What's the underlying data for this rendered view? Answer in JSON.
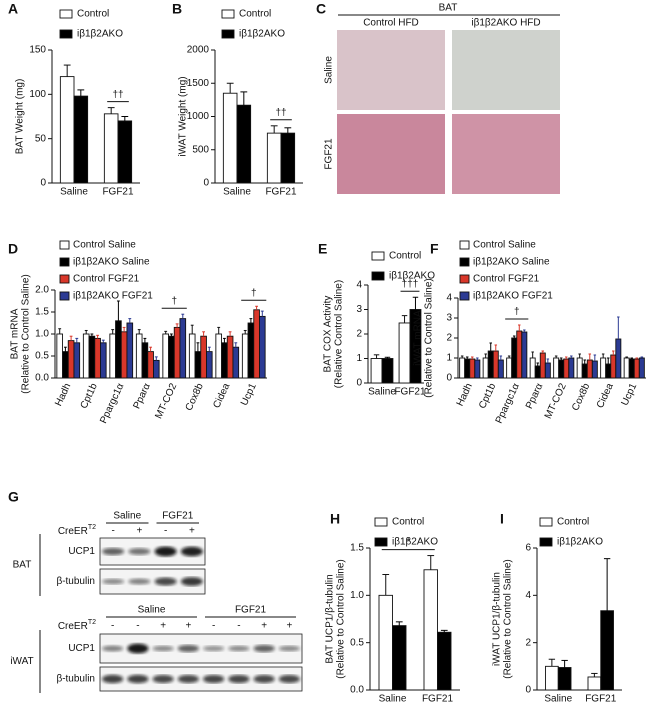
{
  "chart_data": [
    {
      "panel": "A",
      "type": "bar",
      "ylabel": [
        "BAT Weight (mg)"
      ],
      "categories": [
        "Saline",
        "FGF21"
      ],
      "series": [
        {
          "name": "Control",
          "color": "#ffffff",
          "values": [
            120,
            78
          ],
          "errors": [
            13,
            7
          ]
        },
        {
          "name": "iβ1β2AKO",
          "color": "#000000",
          "values": [
            98,
            70
          ],
          "errors": [
            7,
            5
          ]
        }
      ],
      "ylim": [
        0,
        150
      ],
      "yticks": [
        0,
        50,
        100,
        150
      ],
      "annotations": [
        "††"
      ]
    },
    {
      "panel": "B",
      "type": "bar",
      "ylabel": [
        "iWAT Weight (mg)"
      ],
      "categories": [
        "Saline",
        "FGF21"
      ],
      "series": [
        {
          "name": "Control",
          "color": "#ffffff",
          "values": [
            1350,
            750
          ],
          "errors": [
            150,
            110
          ]
        },
        {
          "name": "iβ1β2AKO",
          "color": "#000000",
          "values": [
            1170,
            750
          ],
          "errors": [
            200,
            80
          ]
        }
      ],
      "ylim": [
        0,
        2000
      ],
      "yticks": [
        0,
        500,
        1000,
        1500,
        2000
      ],
      "annotations": [
        "††"
      ]
    },
    {
      "panel": "D",
      "type": "bar",
      "ylabel": [
        "BAT mRNA",
        "(Relative to Control Saline)"
      ],
      "categories": [
        "Hadh",
        "Cpt1b",
        "Ppargc1α",
        "Pparα",
        "MT-CO2",
        "Cox8b",
        "Cidea",
        "Ucp1"
      ],
      "series": [
        {
          "name": "Control Saline",
          "color": "#ffffff",
          "values": [
            1.0,
            1.0,
            1.0,
            1.0,
            1.0,
            1.0,
            1.0,
            1.0
          ],
          "errors": [
            0.12,
            0.08,
            0.1,
            0.1,
            0.06,
            0.2,
            0.15,
            0.08
          ]
        },
        {
          "name": "iβ1β2AKO Saline",
          "color": "#000000",
          "values": [
            0.6,
            0.95,
            1.3,
            0.8,
            0.95,
            0.6,
            0.8,
            1.25
          ],
          "errors": [
            0.1,
            0.05,
            0.45,
            0.1,
            0.05,
            0.2,
            0.1,
            0.1
          ]
        },
        {
          "name": "Control FGF21",
          "color": "#d9372a",
          "values": [
            0.85,
            0.9,
            1.05,
            0.6,
            1.15,
            0.95,
            0.95,
            1.55
          ],
          "errors": [
            0.1,
            0.07,
            0.1,
            0.1,
            0.08,
            0.1,
            0.1,
            0.08
          ]
        },
        {
          "name": "iβ1β2AKO FGF21",
          "color": "#2b3a93",
          "values": [
            0.8,
            0.8,
            1.25,
            0.4,
            1.35,
            0.6,
            0.7,
            1.4
          ],
          "errors": [
            0.1,
            0.06,
            0.1,
            0.08,
            0.1,
            0.1,
            0.1,
            0.12
          ]
        }
      ],
      "ylim": [
        0,
        2
      ],
      "yticks": [
        {
          "value": 0,
          "label": "0.0"
        },
        0.5,
        {
          "value": 1,
          "label": "1.0"
        },
        1.5,
        {
          "value": 2,
          "label": "2.0"
        }
      ],
      "annotations": [
        "†",
        "†"
      ]
    },
    {
      "panel": "E",
      "type": "bar",
      "ylabel": [
        "BAT COX Activity",
        "(Relative Control Saline)"
      ],
      "categories": [
        "Saline",
        "FGF21"
      ],
      "series": [
        {
          "name": "Control",
          "color": "#ffffff",
          "values": [
            1.0,
            2.45
          ],
          "errors": [
            0.15,
            0.3
          ]
        },
        {
          "name": "iβ1β2AKO",
          "color": "#000000",
          "values": [
            1.0,
            3.0
          ],
          "errors": [
            0.05,
            0.5
          ]
        }
      ],
      "ylim": [
        0,
        4
      ],
      "yticks": [
        0,
        1,
        2,
        3,
        4
      ],
      "annotations": [
        "†††"
      ]
    },
    {
      "panel": "F",
      "type": "bar",
      "ylabel": [
        "iWAT mRNA",
        "(Relative to Control Saline)"
      ],
      "categories": [
        "Hadh",
        "Cpt1b",
        "Ppargc1α",
        "Pparα",
        "MT-CO2",
        "Cox8b",
        "Cidea",
        "Ucp1"
      ],
      "series": [
        {
          "name": "Control Saline",
          "color": "#ffffff",
          "values": [
            1.0,
            1.0,
            1.0,
            1.0,
            1.0,
            1.0,
            1.0,
            1.0
          ],
          "errors": [
            0.1,
            0.2,
            0.1,
            0.3,
            0.1,
            0.2,
            0.2,
            0.05
          ]
        },
        {
          "name": "iβ1β2AKO Saline",
          "color": "#000000",
          "values": [
            0.95,
            1.35,
            2.0,
            0.6,
            0.9,
            0.7,
            0.7,
            0.95
          ],
          "errors": [
            0.1,
            0.4,
            0.1,
            0.15,
            0.1,
            0.2,
            0.3,
            0.05
          ]
        },
        {
          "name": "Control FGF21",
          "color": "#d9372a",
          "values": [
            0.95,
            1.35,
            2.35,
            1.25,
            0.95,
            0.9,
            1.15,
            0.95
          ],
          "errors": [
            0.1,
            0.3,
            0.3,
            0.1,
            0.1,
            0.3,
            0.2,
            0.05
          ]
        },
        {
          "name": "iβ1β2AKO FGF21",
          "color": "#2b3a93",
          "values": [
            0.9,
            0.9,
            2.3,
            0.75,
            1.0,
            0.85,
            1.95,
            1.0
          ],
          "errors": [
            0.1,
            0.2,
            0.1,
            0.2,
            0.1,
            0.3,
            1.1,
            0.05
          ]
        }
      ],
      "ylim": [
        0,
        4
      ],
      "yticks": [
        0,
        1,
        2,
        3,
        4
      ],
      "annotations": [
        "†"
      ]
    },
    {
      "panel": "H",
      "type": "bar",
      "ylabel": [
        "BAT UCP1/β-tubulin",
        "(Relative to Control Saline)"
      ],
      "categories": [
        "Saline",
        "FGF21"
      ],
      "series": [
        {
          "name": "Control",
          "color": "#ffffff",
          "values": [
            1.0,
            1.27
          ],
          "errors": [
            0.22,
            0.15
          ]
        },
        {
          "name": "iβ1β2AKO",
          "color": "#000000",
          "values": [
            0.68,
            0.61
          ],
          "errors": [
            0.04,
            0.02
          ]
        }
      ],
      "ylim": [
        0,
        1.5
      ],
      "yticks": [
        {
          "value": 0,
          "label": "0.0"
        },
        0.5,
        {
          "value": 1,
          "label": "1.0"
        },
        1.5
      ],
      "annotations": [
        "*"
      ]
    },
    {
      "panel": "I",
      "type": "bar",
      "ylabel": [
        "iWAT UCP1/β-tubulin",
        "(Relative to Control Saline)"
      ],
      "categories": [
        "Saline",
        "FGF21"
      ],
      "series": [
        {
          "name": "Control",
          "color": "#ffffff",
          "values": [
            1.0,
            0.55
          ],
          "errors": [
            0.3,
            0.15
          ]
        },
        {
          "name": "iβ1β2AKO",
          "color": "#000000",
          "values": [
            0.95,
            3.35
          ],
          "errors": [
            0.3,
            2.2
          ]
        }
      ],
      "ylim": [
        0,
        6
      ],
      "yticks": [
        0,
        2,
        4,
        6
      ],
      "annotations": []
    }
  ],
  "histology": {
    "panel": "C",
    "header": "BAT",
    "columns": [
      "Control HFD",
      "iβ1β2AKO HFD"
    ],
    "rows": [
      "Saline",
      "FGF21"
    ]
  },
  "blot": {
    "panel": "G",
    "bat": {
      "label": "BAT",
      "groups": [
        "Saline",
        "FGF21"
      ],
      "genotype_label": "CreER",
      "genotype_sup": "T2",
      "genotype": [
        "-",
        "+",
        "-",
        "+"
      ],
      "proteins": [
        "UCP1",
        "β-tubulin"
      ]
    },
    "iwat": {
      "label": "iWAT",
      "groups": [
        "Saline",
        "FGF21"
      ],
      "genotype_label": "CreER",
      "genotype_sup": "T2",
      "genotype": [
        "-",
        "-",
        "+",
        "+",
        "-",
        "-",
        "+",
        "+"
      ],
      "proteins": [
        "UCP1",
        "β-tubulin"
      ]
    }
  }
}
